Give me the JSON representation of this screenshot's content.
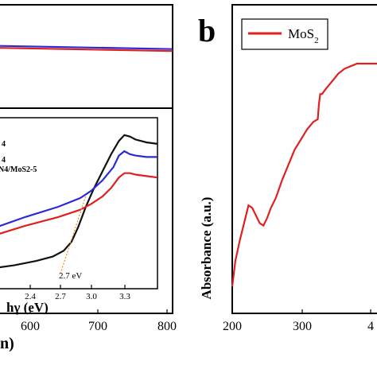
{
  "panel_b_label": "b",
  "chart_data": [
    {
      "id": "panel-a",
      "type": "line",
      "xlabel_fragment": "n)",
      "ticks_x": [
        "600",
        "700",
        "800"
      ],
      "xlim": [
        450,
        800
      ],
      "series": [
        {
          "color": "#2b2bd6",
          "x": [
            450,
            800
          ],
          "y": [
            0.99,
            0.94
          ]
        },
        {
          "color": "#e02020",
          "x": [
            450,
            800
          ],
          "y": [
            0.96,
            0.91
          ]
        }
      ]
    },
    {
      "id": "panel-a-inset",
      "type": "line",
      "xlabel": "hγ (eV)",
      "ticks_x": [
        "2.4",
        "2.7",
        "3.0",
        "3.3"
      ],
      "xlim": [
        2.0,
        3.5
      ],
      "legend_fragments": [
        "4",
        "4",
        "N4/MoS2-5"
      ],
      "annotation": "2.7 eV",
      "series": [
        {
          "color": "#111111",
          "x": [
            2.0,
            2.2,
            2.4,
            2.55,
            2.65,
            2.72,
            2.78,
            2.85,
            2.92,
            3.0,
            3.08,
            3.15,
            3.2,
            3.25,
            3.3,
            3.4,
            3.5
          ],
          "y": [
            0.08,
            0.1,
            0.13,
            0.16,
            0.2,
            0.26,
            0.36,
            0.5,
            0.62,
            0.74,
            0.86,
            0.95,
            0.99,
            0.98,
            0.96,
            0.94,
            0.93
          ]
        },
        {
          "color": "#2b2bd6",
          "x": [
            2.0,
            2.3,
            2.6,
            2.8,
            2.9,
            3.0,
            3.1,
            3.15,
            3.2,
            3.25,
            3.3,
            3.4,
            3.5
          ],
          "y": [
            0.35,
            0.43,
            0.5,
            0.56,
            0.61,
            0.68,
            0.77,
            0.85,
            0.88,
            0.86,
            0.85,
            0.84,
            0.84
          ]
        },
        {
          "color": "#e02020",
          "x": [
            2.0,
            2.3,
            2.6,
            2.8,
            2.9,
            3.0,
            3.08,
            3.15,
            3.2,
            3.25,
            3.3,
            3.4,
            3.5
          ],
          "y": [
            0.3,
            0.37,
            0.43,
            0.48,
            0.52,
            0.57,
            0.63,
            0.7,
            0.73,
            0.73,
            0.72,
            0.71,
            0.7
          ]
        }
      ]
    },
    {
      "id": "panel-b",
      "type": "line",
      "ylabel": "Absorbance (a.u.)",
      "ticks_x": [
        "200",
        "300",
        "4"
      ],
      "xlim": [
        200,
        455
      ],
      "legend": [
        "MoS2"
      ],
      "series": [
        {
          "name": "MoS2",
          "color": "#e02020",
          "x": [
            200,
            205,
            212,
            220,
            226,
            232,
            238,
            244,
            250,
            256,
            262,
            270,
            280,
            290,
            300,
            310,
            320,
            330,
            337,
            339,
            341,
            344,
            350,
            360,
            370,
            380,
            390,
            400,
            410,
            420,
            430,
            440,
            450,
            455
          ],
          "y": [
            0.12,
            0.22,
            0.3,
            0.38,
            0.44,
            0.43,
            0.4,
            0.37,
            0.36,
            0.39,
            0.43,
            0.47,
            0.54,
            0.6,
            0.66,
            0.7,
            0.74,
            0.77,
            0.78,
            0.84,
            0.88,
            0.88,
            0.9,
            0.93,
            0.96,
            0.98,
            0.99,
            1.0,
            1.0,
            1.0,
            1.0,
            1.0,
            1.0,
            1.0
          ]
        }
      ]
    }
  ]
}
